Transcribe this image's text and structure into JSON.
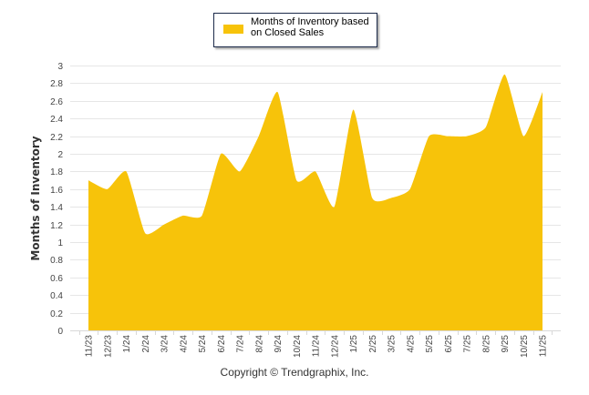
{
  "legend": {
    "label": "Months of Inventory based on Closed Sales",
    "color": "#f7c30a"
  },
  "footer": {
    "copyright": "Copyright © Trendgraphix, Inc."
  },
  "chart_data": {
    "type": "area",
    "title": "",
    "xlabel": "",
    "ylabel": "Months of Inventory",
    "ylim": [
      0,
      3
    ],
    "yticks": [
      0,
      0.2,
      0.4,
      0.6,
      0.8,
      1,
      1.2,
      1.4,
      1.6,
      1.8,
      2,
      2.2,
      2.4,
      2.6,
      2.8,
      3
    ],
    "grid": true,
    "legend_position": "top-center",
    "categories": [
      "11/23",
      "12/23",
      "1/24",
      "2/24",
      "3/24",
      "4/24",
      "5/24",
      "6/24",
      "7/24",
      "8/24",
      "9/24",
      "10/24",
      "11/24",
      "12/24",
      "1/25",
      "2/25",
      "3/25",
      "4/25",
      "5/25",
      "6/25",
      "7/25",
      "8/25",
      "9/25",
      "10/25",
      "11/25"
    ],
    "series": [
      {
        "name": "Months of Inventory based on Closed Sales",
        "color": "#f7c30a",
        "values": [
          1.7,
          1.6,
          1.8,
          1.1,
          1.2,
          1.3,
          1.3,
          2.0,
          1.8,
          2.2,
          2.7,
          1.7,
          1.8,
          1.4,
          2.5,
          1.5,
          1.5,
          1.6,
          2.2,
          2.2,
          2.2,
          2.3,
          2.9,
          2.2,
          2.7
        ]
      }
    ]
  }
}
